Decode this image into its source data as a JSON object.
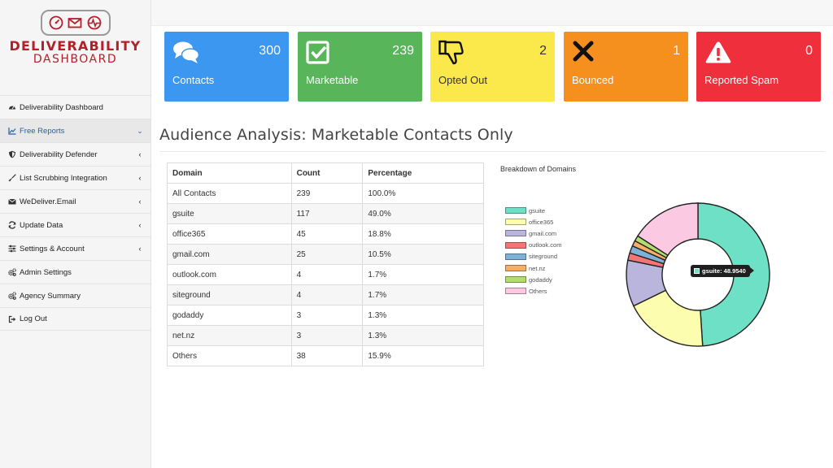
{
  "logo": {
    "line1": "DELIVERABILITY",
    "line2": "DASHBOARD",
    "icons": [
      "gauge-icon",
      "envelope-icon",
      "pulse-icon"
    ],
    "color": "#b3202a"
  },
  "sidebar": {
    "items": [
      {
        "label": "Deliverability Dashboard",
        "icon": "dashboard-icon",
        "caret": ""
      },
      {
        "label": "Free Reports",
        "icon": "line-chart-icon",
        "caret": "⌄",
        "active": true
      },
      {
        "label": "Deliverability Defender",
        "icon": "shield-icon",
        "caret": "‹"
      },
      {
        "label": "List Scrubbing Integration",
        "icon": "broom-icon",
        "caret": "‹"
      },
      {
        "label": "WeDeliver.Email",
        "icon": "envelope-icon",
        "caret": "‹"
      },
      {
        "label": "Update Data",
        "icon": "refresh-icon",
        "caret": "‹"
      },
      {
        "label": "Settings & Account",
        "icon": "sliders-icon",
        "caret": "‹"
      },
      {
        "label": "Admin Settings",
        "icon": "cogs-icon",
        "caret": ""
      },
      {
        "label": "Agency Summary",
        "icon": "cogs-icon",
        "caret": ""
      },
      {
        "label": "Log Out",
        "icon": "sign-out-icon",
        "caret": ""
      }
    ]
  },
  "cards": [
    {
      "label": "Contacts",
      "count": "300",
      "icon": "comments-icon",
      "color": "#3b97ef"
    },
    {
      "label": "Marketable",
      "count": "239",
      "icon": "check-square-icon",
      "color": "#58b55a"
    },
    {
      "label": "Opted Out",
      "count": "2",
      "icon": "thumbs-down-icon",
      "color": "#fbe84a"
    },
    {
      "label": "Bounced",
      "count": "1",
      "icon": "x-icon",
      "color": "#f5901e"
    },
    {
      "label": "Reported Spam",
      "count": "0",
      "icon": "warning-icon",
      "color": "#ef2f3c"
    }
  ],
  "section": {
    "title": "Audience Analysis: Marketable Contacts Only"
  },
  "table": {
    "headers": [
      "Domain",
      "Count",
      "Percentage"
    ],
    "rows": [
      [
        "All Contacts",
        "239",
        "100.0%"
      ],
      [
        "gsuite",
        "117",
        "49.0%"
      ],
      [
        "office365",
        "45",
        "18.8%"
      ],
      [
        "gmail.com",
        "25",
        "10.5%"
      ],
      [
        "outlook.com",
        "4",
        "1.7%"
      ],
      [
        "siteground",
        "4",
        "1.7%"
      ],
      [
        "godaddy",
        "3",
        "1.3%"
      ],
      [
        "net.nz",
        "3",
        "1.3%"
      ],
      [
        "Others",
        "38",
        "15.9%"
      ]
    ]
  },
  "chart_data": {
    "type": "pie",
    "title": "Breakdown of Domains",
    "categories": [
      "gsuite",
      "office365",
      "gmail.com",
      "outlook.com",
      "siteground",
      "net.nz",
      "godaddy",
      "Others"
    ],
    "values": [
      48.954,
      18.828,
      10.46,
      1.674,
      1.674,
      1.255,
      1.255,
      15.9
    ],
    "colors": [
      "#6ee0c5",
      "#fdfdb0",
      "#bab5dc",
      "#f47575",
      "#7fb0d8",
      "#f8ae67",
      "#b4de6c",
      "#fbc9e2"
    ],
    "legend_position": "left",
    "tooltip": "gsuite: 48.9540"
  }
}
